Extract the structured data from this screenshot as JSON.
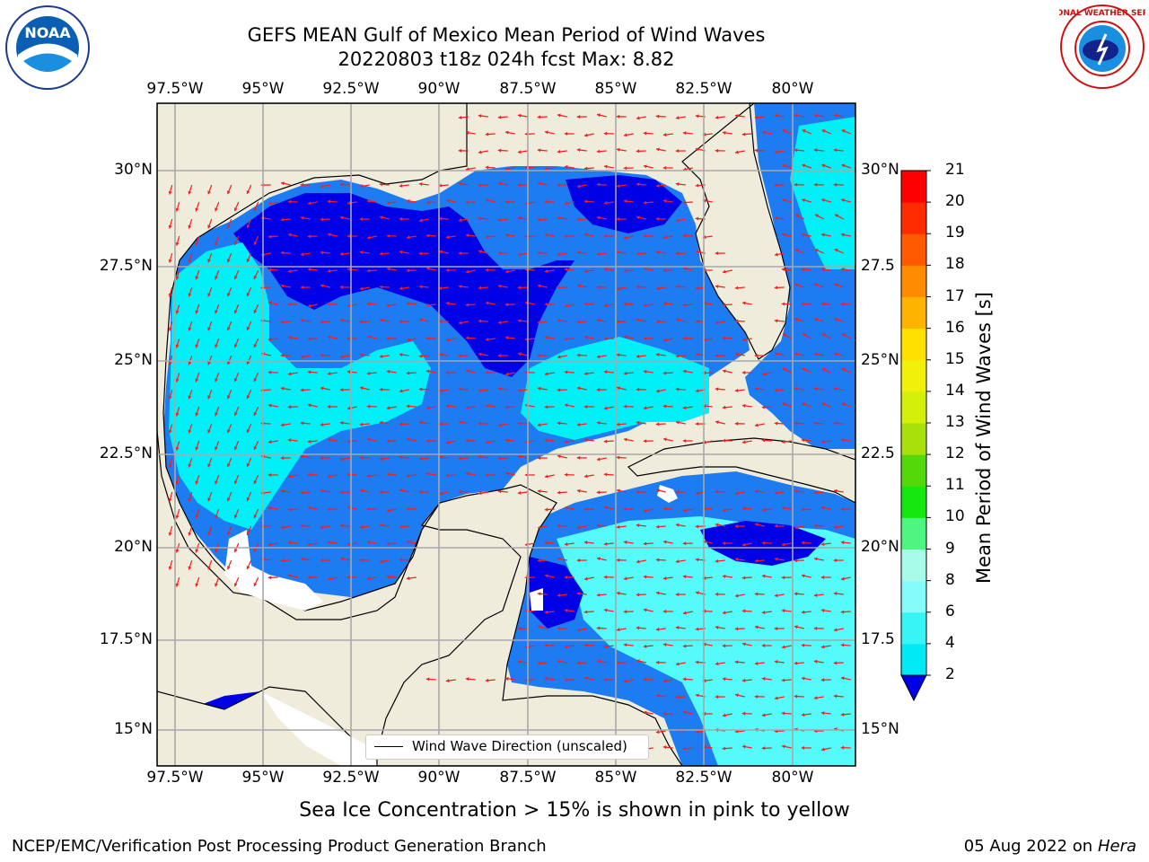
{
  "header": {
    "title_line1": "GEFS MEAN Gulf of Mexico Mean Period of Wind Waves",
    "title_line2": "20220803 t18z 024h fcst   Max: 8.82"
  },
  "axes": {
    "lon_ticks": [
      "97.5°W",
      "95°W",
      "92.5°W",
      "90°W",
      "87.5°W",
      "85°W",
      "82.5°W",
      "80°W"
    ],
    "lat_ticks": [
      "30°N",
      "27.5°N",
      "25°N",
      "22.5°N",
      "20°N",
      "17.5°N",
      "15°N"
    ],
    "lat_ticks_right": [
      "30°N",
      "27.5",
      "25°N",
      "22.5",
      "20°N",
      "17.5",
      "15°N"
    ]
  },
  "colorbar": {
    "title": "Mean Period of Wind Waves [s]",
    "levels": [
      "2",
      "4",
      "6",
      "8",
      "9",
      "10",
      "11",
      "12",
      "13",
      "14",
      "15",
      "16",
      "17",
      "18",
      "19",
      "20",
      "21"
    ],
    "colors": [
      "#0a7cf5",
      "#00eaf5",
      "#38f5f5",
      "#86fbfb",
      "#a8fbe8",
      "#4ef580",
      "#14e80f",
      "#55d80a",
      "#a8e00a",
      "#d4f00a",
      "#f0f00a",
      "#ffe000",
      "#ffb400",
      "#ff8c00",
      "#ff5a00",
      "#ff2c00",
      "#ff0000"
    ]
  },
  "legend": {
    "label": "Wind Wave Direction (unscaled)"
  },
  "caption": "Sea Ice Concentration > 15% is shown in pink to yellow",
  "footer": {
    "left": "NCEP/EMC/Verification Post Processing Product Generation Branch",
    "right_date": "05 Aug 2022 on",
    "right_host": "Hera"
  },
  "logos": {
    "left": "NOAA",
    "right_text": "NATIONAL WEATHER SERVICE"
  },
  "colors": {
    "land": "#efecdc",
    "deep_blue": "#0000e6",
    "mid_blue": "#1e7cf2",
    "cyan": "#00f0f8",
    "light_cyan": "#55fbfb",
    "arrow": "#ff1a1a"
  }
}
